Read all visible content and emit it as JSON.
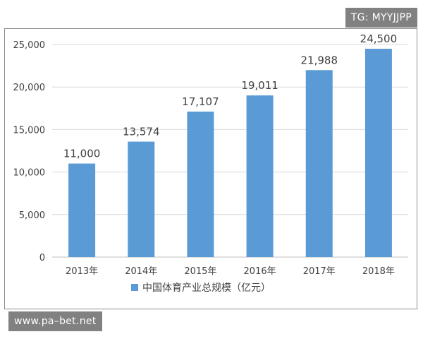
{
  "watermarks": {
    "top_right": "TG: MYYJJPP",
    "bottom_left": "www.pa–bet.net"
  },
  "chart_data": {
    "type": "bar",
    "categories": [
      "2013年",
      "2014年",
      "2015年",
      "2016年",
      "2017年",
      "2018年"
    ],
    "series": [
      {
        "name": "中国体育产业总规模（亿元）",
        "values": [
          11000,
          13574,
          17107,
          19011,
          21988,
          24500
        ],
        "labels": [
          "11,000",
          "13,574",
          "17,107",
          "19,011",
          "21,988",
          "24,500"
        ],
        "color": "#5B9BD5"
      }
    ],
    "y_ticks": [
      0,
      5000,
      10000,
      15000,
      20000,
      25000
    ],
    "y_tick_labels": [
      "0",
      "5,000",
      "10,000",
      "15,000",
      "20,000",
      "25,000"
    ],
    "ylim": [
      0,
      25000
    ],
    "grid": true,
    "legend_position": "bottom"
  }
}
